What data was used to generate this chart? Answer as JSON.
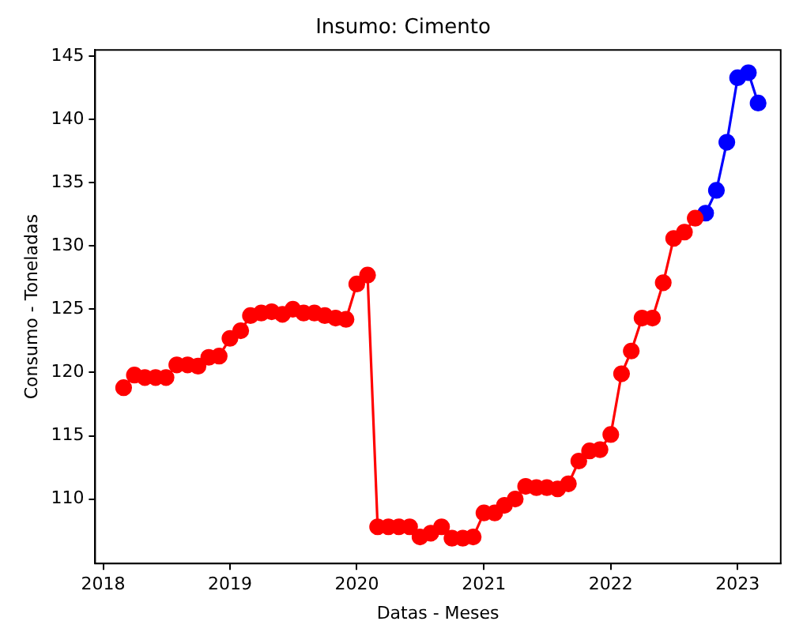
{
  "chart_data": {
    "type": "line",
    "title": "Insumo: Cimento",
    "xlabel": "Datas - Meses",
    "ylabel": "Consumo - Toneladas",
    "series": [
      {
        "color": "#ff0000",
        "x": [
          "2018-03",
          "2018-04",
          "2018-05",
          "2018-06",
          "2018-07",
          "2018-08",
          "2018-09",
          "2018-10",
          "2018-11",
          "2018-12",
          "2019-01",
          "2019-02",
          "2019-03",
          "2019-04",
          "2019-05",
          "2019-06",
          "2019-07",
          "2019-08",
          "2019-09",
          "2019-10",
          "2019-11",
          "2019-12",
          "2020-01",
          "2020-02",
          "2020-03",
          "2020-04",
          "2020-05",
          "2020-06",
          "2020-07",
          "2020-08",
          "2020-09",
          "2020-10",
          "2020-11",
          "2020-12",
          "2021-01",
          "2021-02",
          "2021-03",
          "2021-04",
          "2021-05",
          "2021-06",
          "2021-07",
          "2021-08",
          "2021-09",
          "2021-10",
          "2021-11",
          "2021-12",
          "2022-01",
          "2022-02",
          "2022-03",
          "2022-04",
          "2022-05",
          "2022-06",
          "2022-07",
          "2022-08",
          "2022-09"
        ],
        "values": [
          118.8,
          119.8,
          119.6,
          119.6,
          119.6,
          120.6,
          120.6,
          120.5,
          121.2,
          121.3,
          122.7,
          123.3,
          124.5,
          124.7,
          124.8,
          124.6,
          125.0,
          124.7,
          124.7,
          124.5,
          124.3,
          124.2,
          127.0,
          127.7,
          107.8,
          107.8,
          107.8,
          107.8,
          107.0,
          107.3,
          107.8,
          106.9,
          106.9,
          107.0,
          108.9,
          108.9,
          109.5,
          110.0,
          111.0,
          110.9,
          110.9,
          110.8,
          111.2,
          113.0,
          113.8,
          113.9,
          115.1,
          119.9,
          121.7,
          124.3,
          124.3,
          127.1,
          130.6,
          131.1,
          132.2
        ]
      },
      {
        "color": "#0000ff",
        "x": [
          "2022-10",
          "2022-11",
          "2022-12",
          "2023-01",
          "2023-02",
          "2023-03"
        ],
        "values": [
          132.6,
          134.4,
          138.2,
          143.3,
          143.7,
          141.3
        ]
      }
    ],
    "xlim": [
      "2017-12-09",
      "2023-05-05"
    ],
    "xticks": [
      "2018",
      "2019",
      "2020",
      "2021",
      "2022",
      "2023"
    ],
    "ylim": [
      104.9,
      145.5
    ],
    "yticks": [
      110,
      115,
      120,
      125,
      130,
      135,
      140,
      145
    ],
    "grid": false,
    "legend": false,
    "marker": "circle",
    "line_style": "solid"
  }
}
